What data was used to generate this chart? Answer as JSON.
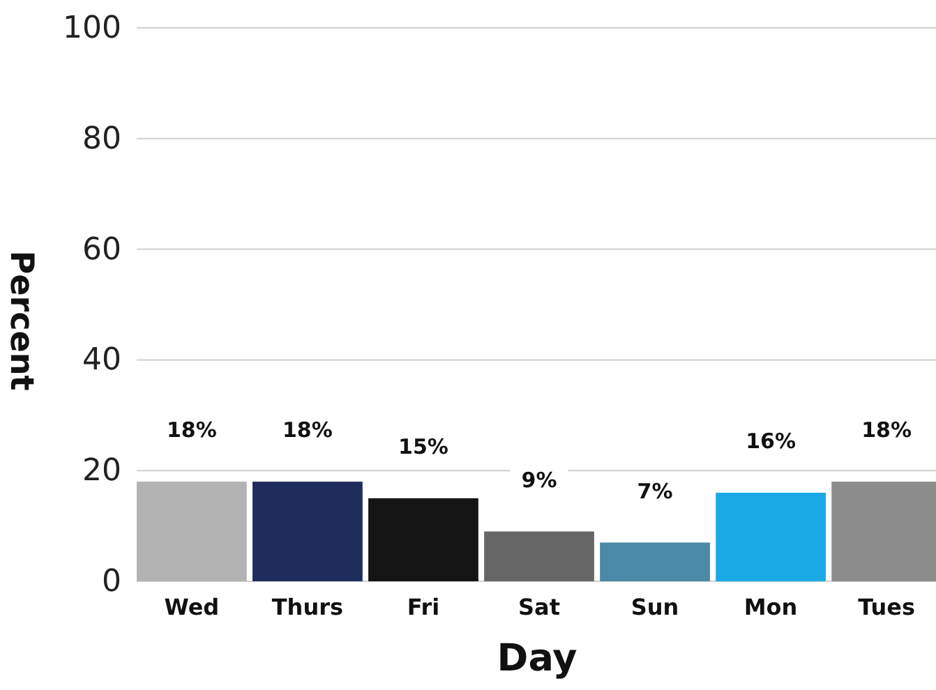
{
  "chart_data": {
    "type": "bar",
    "xlabel": "Day",
    "ylabel": "Percent",
    "categories": [
      "Wed",
      "Thurs",
      "Fri",
      "Sat",
      "Sun",
      "Mon",
      "Tues"
    ],
    "values": [
      18,
      18,
      15,
      9,
      7,
      16,
      18
    ],
    "colors": [
      "#b3b3b3",
      "#1f2d5c",
      "#141414",
      "#666666",
      "#4a8aa6",
      "#1ba9e6",
      "#8c8c8c"
    ],
    "value_labels": [
      "18%",
      "18%",
      "15%",
      "9%",
      "7%",
      "16%",
      "18%"
    ],
    "ylim": [
      0,
      100
    ],
    "yticks": [
      0,
      20,
      40,
      60,
      80,
      100
    ],
    "grid": "y"
  }
}
